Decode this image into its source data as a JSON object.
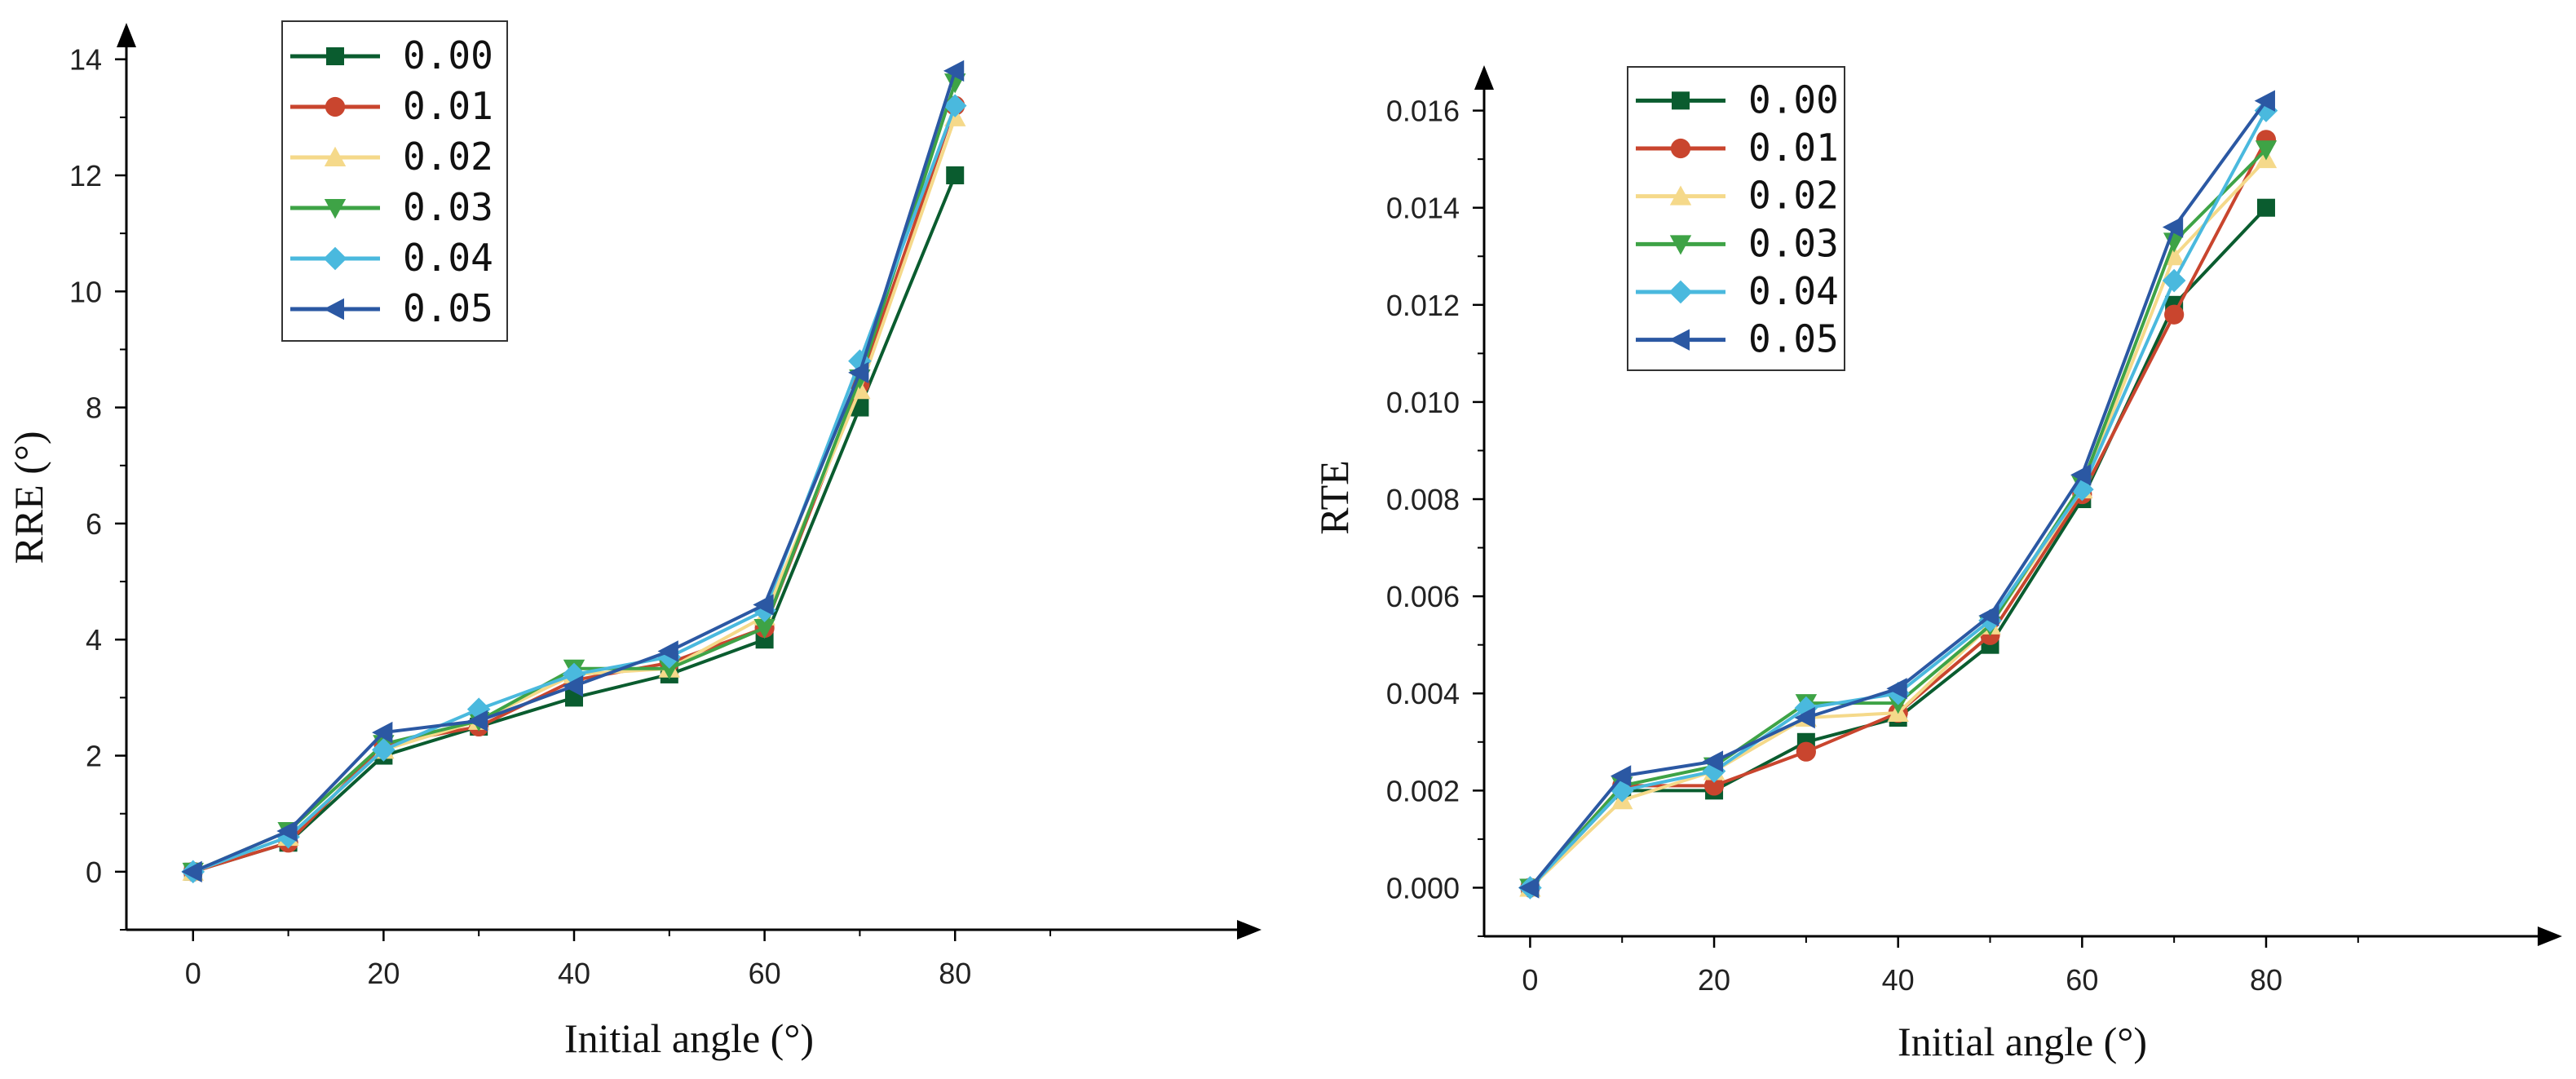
{
  "chart_data": [
    {
      "type": "line",
      "xlabel": "Initial angle (°)",
      "ylabel": "RRE (°)",
      "x": [
        0,
        10,
        20,
        30,
        40,
        50,
        60,
        70,
        80
      ],
      "xlim": [
        -7,
        112
      ],
      "ylim": [
        -1,
        14.6
      ],
      "xticks": [
        "0",
        "20",
        "40",
        "60",
        "80"
      ],
      "yticks": [
        "0",
        "2",
        "4",
        "6",
        "8",
        "10",
        "12",
        "14"
      ],
      "legend_position": "top-left",
      "series": [
        {
          "name": "0.00",
          "color": "#0a5c2f",
          "marker": "square",
          "values": [
            0,
            0.5,
            2.0,
            2.5,
            3.0,
            3.4,
            4.0,
            8.0,
            12.0
          ]
        },
        {
          "name": "0.01",
          "color": "#c9452e",
          "marker": "circle",
          "values": [
            0,
            0.5,
            2.2,
            2.5,
            3.3,
            3.6,
            4.2,
            8.4,
            13.2
          ]
        },
        {
          "name": "0.02",
          "color": "#f5d98a",
          "marker": "triangle-up",
          "values": [
            0,
            0.6,
            2.1,
            2.6,
            3.4,
            3.5,
            4.4,
            8.3,
            13.0
          ]
        },
        {
          "name": "0.03",
          "color": "#3ea346",
          "marker": "triangle-down",
          "values": [
            0,
            0.7,
            2.2,
            2.6,
            3.5,
            3.5,
            4.2,
            8.5,
            13.6
          ]
        },
        {
          "name": "0.04",
          "color": "#4ab9de",
          "marker": "diamond",
          "values": [
            0,
            0.6,
            2.1,
            2.8,
            3.4,
            3.7,
            4.5,
            8.8,
            13.2
          ]
        },
        {
          "name": "0.05",
          "color": "#2b58a3",
          "marker": "triangle-left",
          "values": [
            0,
            0.7,
            2.4,
            2.6,
            3.2,
            3.8,
            4.6,
            8.6,
            13.8
          ]
        }
      ]
    },
    {
      "type": "line",
      "xlabel": "Initial angle (°)",
      "ylabel": "RTE",
      "x": [
        0,
        10,
        20,
        30,
        40,
        50,
        60,
        70,
        80
      ],
      "xlim": [
        -5,
        112
      ],
      "ylim": [
        -0.001,
        0.0169
      ],
      "xticks": [
        "0",
        "20",
        "40",
        "60",
        "80"
      ],
      "yticks": [
        "0.000",
        "0.002",
        "0.004",
        "0.006",
        "0.008",
        "0.010",
        "0.012",
        "0.014",
        "0.016"
      ],
      "legend_position": "top-left",
      "series": [
        {
          "name": "0.00",
          "color": "#0a5c2f",
          "marker": "square",
          "values": [
            0,
            0.002,
            0.002,
            0.003,
            0.0035,
            0.005,
            0.008,
            0.012,
            0.014
          ]
        },
        {
          "name": "0.01",
          "color": "#c9452e",
          "marker": "circle",
          "values": [
            0,
            0.0021,
            0.0021,
            0.0028,
            0.0036,
            0.0052,
            0.0081,
            0.0118,
            0.0154
          ]
        },
        {
          "name": "0.02",
          "color": "#f5d98a",
          "marker": "triangle-up",
          "values": [
            0,
            0.0018,
            0.0024,
            0.0035,
            0.0036,
            0.0054,
            0.0082,
            0.013,
            0.015
          ]
        },
        {
          "name": "0.03",
          "color": "#3ea346",
          "marker": "triangle-down",
          "values": [
            0,
            0.0021,
            0.0025,
            0.0038,
            0.0038,
            0.0054,
            0.0083,
            0.0133,
            0.0152
          ]
        },
        {
          "name": "0.04",
          "color": "#4ab9de",
          "marker": "diamond",
          "values": [
            0,
            0.002,
            0.0024,
            0.0037,
            0.004,
            0.0055,
            0.0082,
            0.0125,
            0.016
          ]
        },
        {
          "name": "0.05",
          "color": "#2b58a3",
          "marker": "triangle-left",
          "values": [
            0,
            0.0023,
            0.0026,
            0.0035,
            0.0041,
            0.0056,
            0.0085,
            0.0136,
            0.0162
          ]
        }
      ]
    }
  ]
}
